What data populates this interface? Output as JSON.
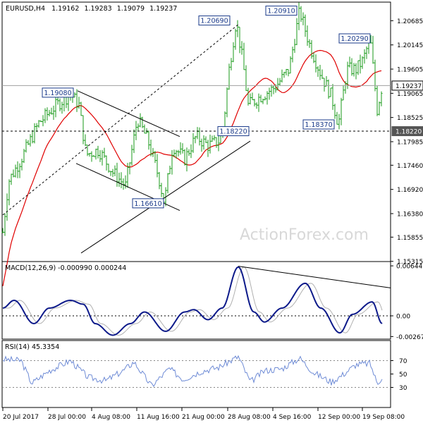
{
  "chart_data": [
    {
      "type": "bar",
      "subtype": "ohlc",
      "title": "EURUSD,H4",
      "ohlc": {
        "open": "1.19162",
        "high": "1.19283",
        "low": "1.19079",
        "close": "1.19237"
      },
      "ylim": [
        1.1531,
        1.211
      ],
      "y_ticks": [
        "1.20685",
        "1.20145",
        "1.19605",
        "1.19065",
        "1.18525",
        "1.17985",
        "1.17460",
        "1.16920",
        "1.16380",
        "1.15855",
        "1.15315"
      ],
      "x_ticks": [
        "20 Jul 2017",
        "28 Jul 00:00",
        "4 Aug 08:00",
        "11 Aug 16:00",
        "21 Aug 00:00",
        "28 Aug 08:00",
        "4 Sep 16:00",
        "12 Sep 00:00",
        "19 Sep 08:00"
      ],
      "current_price": "1.19237",
      "support_level": "1.18220",
      "annotations": [
        {
          "label": "1.19080",
          "value": 1.1908
        },
        {
          "label": "1.16610",
          "value": 1.1661
        },
        {
          "label": "1.18220",
          "value": 1.1822
        },
        {
          "label": "1.20690",
          "value": 1.2069
        },
        {
          "label": "1.20910",
          "value": 1.2091
        },
        {
          "label": "1.20290",
          "value": 1.2029
        },
        {
          "label": "1.18370",
          "value": 1.1837
        }
      ],
      "moving_average_color": "#e00000",
      "bar_color": "#1a9a1a",
      "watermark": "ActionForex.com",
      "grid": false
    },
    {
      "type": "line",
      "title": "MACD(12,26,9) -0.000990 0.000244",
      "y_ticks": [
        "0.006445",
        "0.00",
        "-0.00267"
      ],
      "series_colors": {
        "macd": "#0d1a8a",
        "signal": "#b0b0b0"
      }
    },
    {
      "type": "line",
      "title": "RSI(14) 45.3354",
      "y_ticks": [
        "70",
        "50",
        "30"
      ],
      "ylim": [
        0,
        100
      ],
      "series_color": "#6f8cd6"
    }
  ]
}
